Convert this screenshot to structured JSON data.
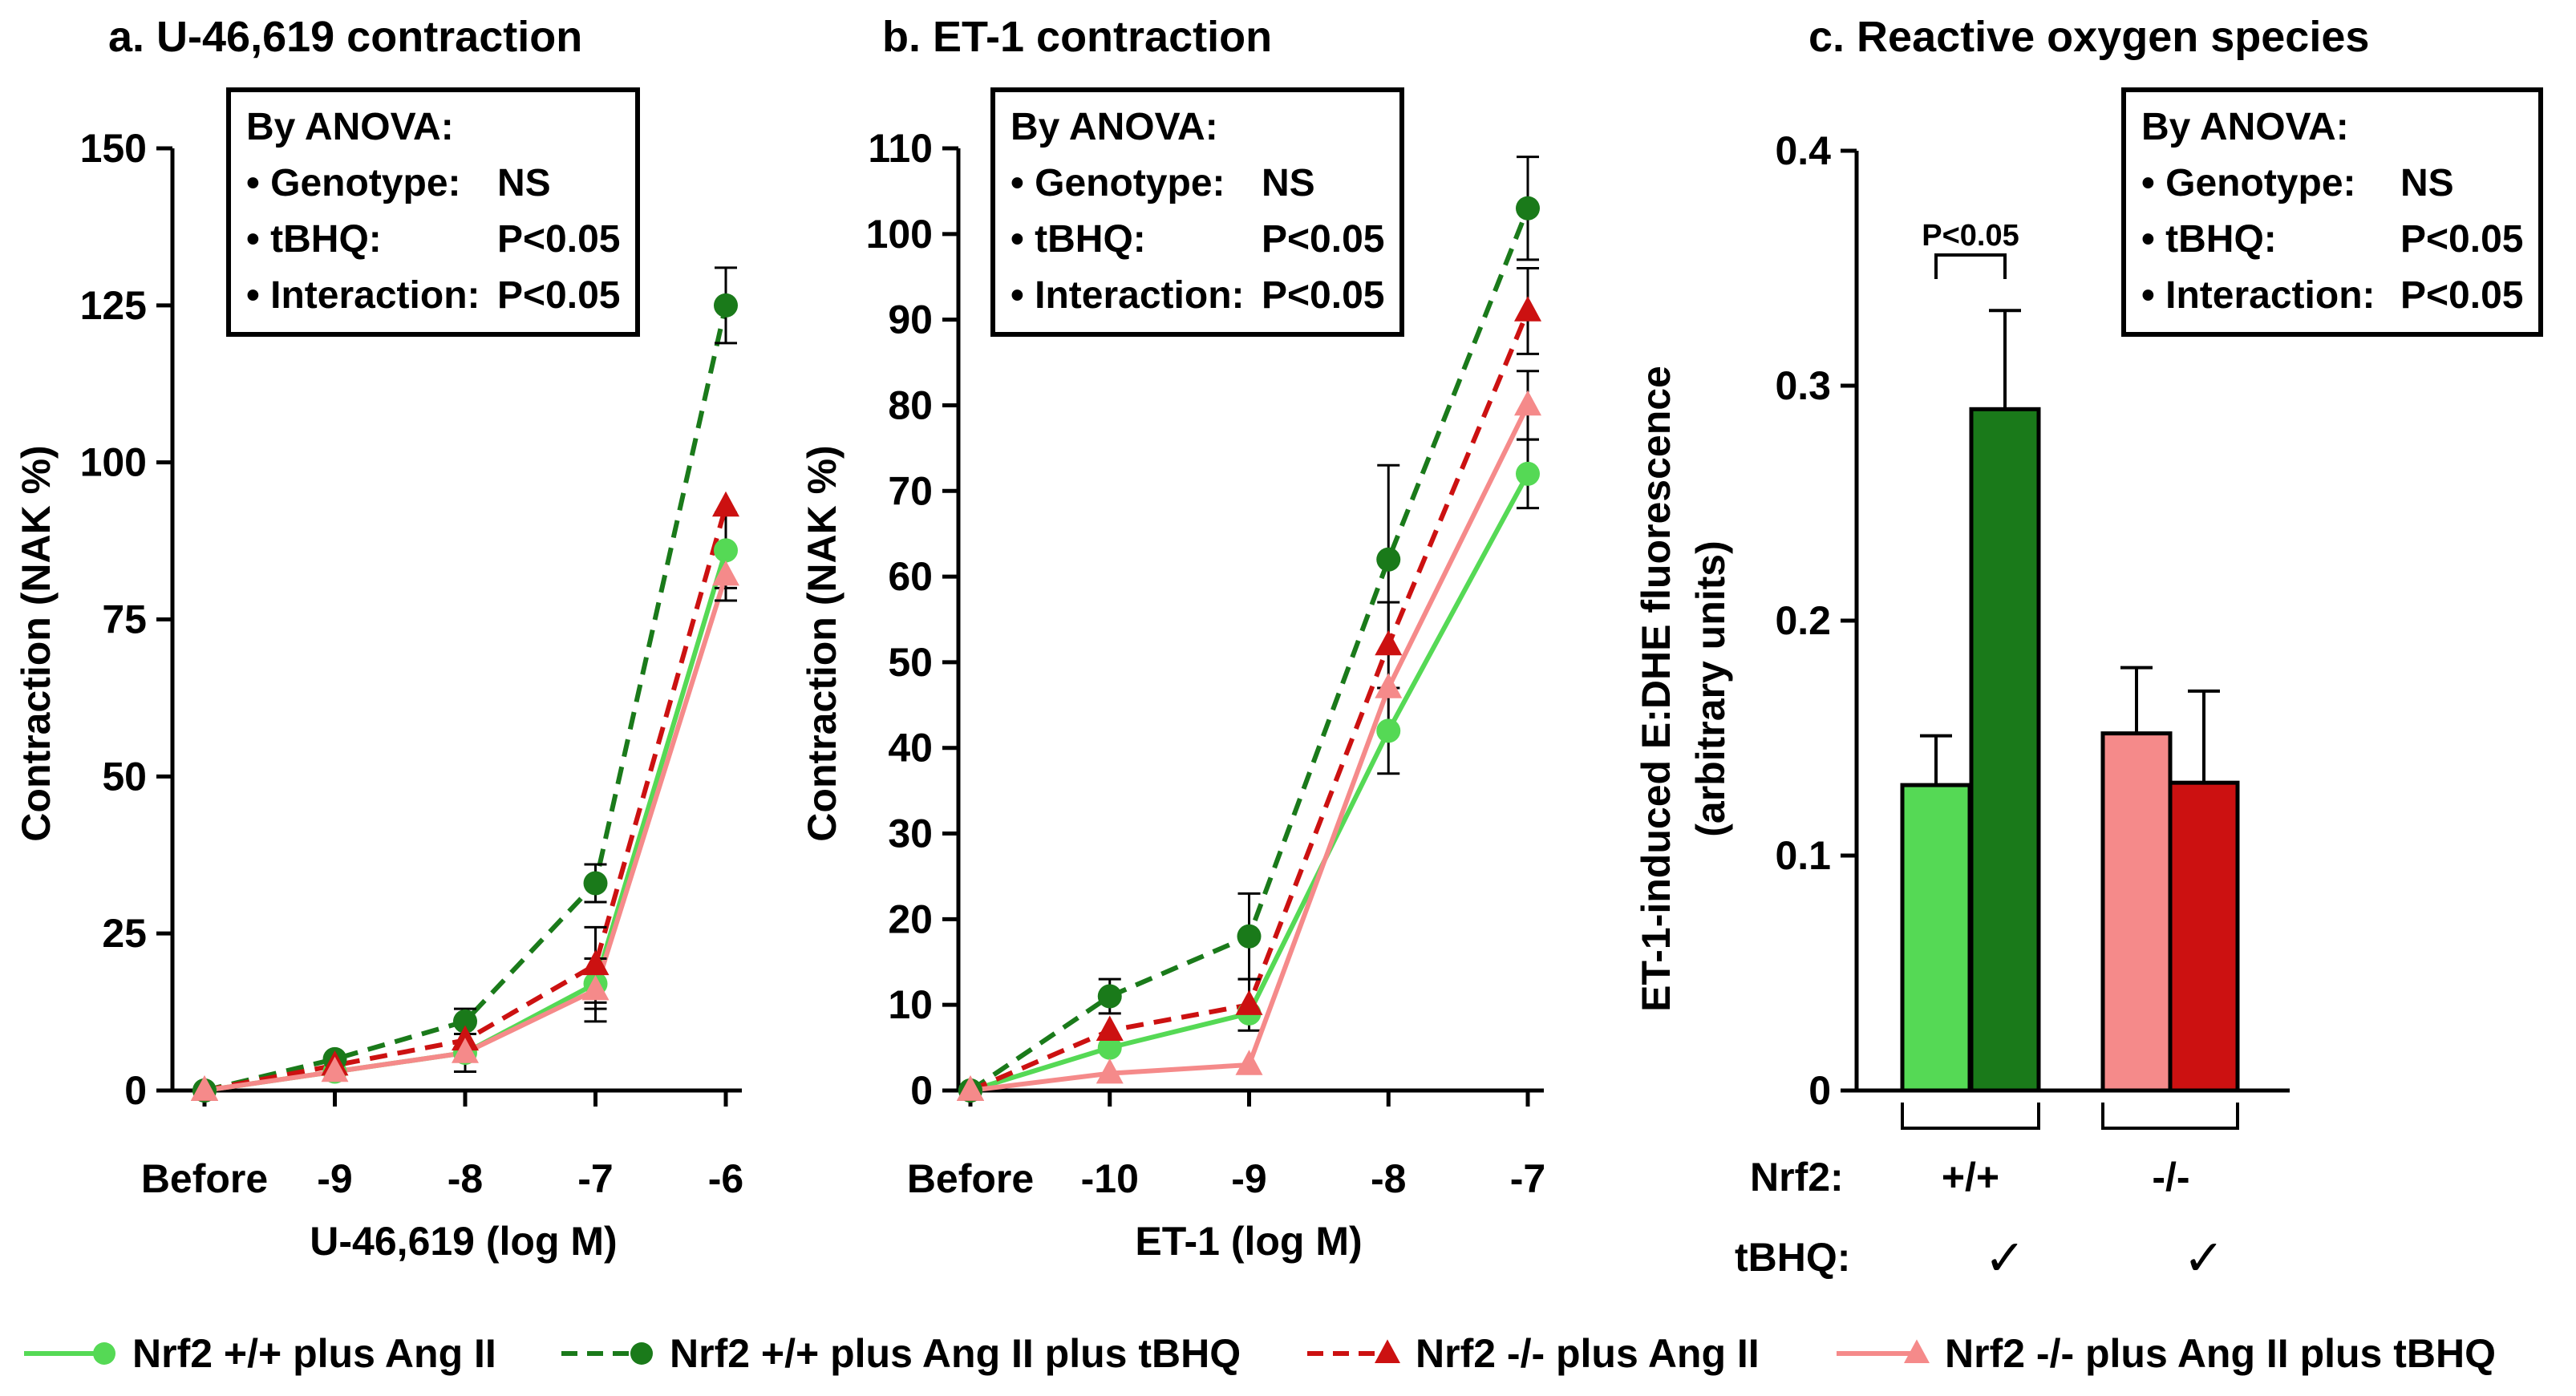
{
  "series_styles": [
    {
      "key": "wt",
      "color": "#55d955",
      "marker": "circle",
      "dashed": false
    },
    {
      "key": "wt_tbhq",
      "color": "#1a7a1a",
      "marker": "circle",
      "dashed": true
    },
    {
      "key": "ko",
      "color": "#cc1111",
      "marker": "triangle",
      "dashed": true
    },
    {
      "key": "ko_tbhq",
      "color": "#f58a8a",
      "marker": "triangle",
      "dashed": false
    }
  ],
  "legend": [
    "Nrf2 +/+ plus Ang II",
    "Nrf2 +/+ plus Ang II plus tBHQ",
    "Nrf2 -/- plus Ang II",
    "Nrf2 -/- plus Ang II plus tBHQ"
  ],
  "anova": {
    "header": "By ANOVA:",
    "rows": [
      {
        "label": "• Genotype:",
        "value": "NS"
      },
      {
        "label": "• tBHQ:",
        "value": "P<0.05"
      },
      {
        "label": "• Interaction:",
        "value": "P<0.05"
      }
    ]
  },
  "bar_labels": {
    "nrf2_label": "Nrf2:",
    "tbhq_label": "tBHQ:",
    "groups": [
      "+/+",
      "-/-"
    ],
    "check": "✓",
    "significance": "P<0.05"
  },
  "chart_data": [
    {
      "type": "line",
      "title": "a. U-46,619 contraction",
      "xlabel": "U-46,619 (log M)",
      "ylabel": "Contraction (NAK %)",
      "categories": [
        "Before",
        "-9",
        "-8",
        "-7",
        "-6"
      ],
      "ylim": [
        0,
        150
      ],
      "yticks": [
        "0",
        "25",
        "50",
        "75",
        "100",
        "125",
        "150"
      ],
      "series": [
        {
          "name": "Nrf2 +/+ plus Ang II",
          "values": [
            0,
            3,
            6,
            17,
            86
          ],
          "errors": [
            0,
            0,
            0,
            4,
            6
          ]
        },
        {
          "name": "Nrf2 +/+ plus Ang II plus tBHQ",
          "values": [
            0,
            5,
            11,
            33,
            125
          ],
          "errors": [
            0,
            0,
            2,
            3,
            6
          ]
        },
        {
          "name": "Nrf2 -/- plus Ang II",
          "values": [
            0,
            4,
            8,
            20,
            93
          ],
          "errors": [
            0,
            0,
            0,
            6,
            0
          ]
        },
        {
          "name": "Nrf2 -/- plus Ang II plus tBHQ",
          "values": [
            0,
            3,
            6,
            16,
            82
          ],
          "errors": [
            0,
            0,
            3,
            5,
            4
          ]
        }
      ]
    },
    {
      "type": "line",
      "title": "b. ET-1 contraction",
      "xlabel": "ET-1 (log M)",
      "ylabel": "Contraction (NAK %)",
      "categories": [
        "Before",
        "-10",
        "-9",
        "-8",
        "-7"
      ],
      "ylim": [
        0,
        110
      ],
      "yticks": [
        "0",
        "10",
        "20",
        "30",
        "40",
        "50",
        "60",
        "70",
        "80",
        "90",
        "100",
        "110"
      ],
      "series": [
        {
          "name": "Nrf2 +/+ plus Ang II",
          "values": [
            0,
            5,
            9,
            42,
            72
          ],
          "errors": [
            0,
            0,
            0,
            5,
            4
          ]
        },
        {
          "name": "Nrf2 +/+ plus Ang II plus tBHQ",
          "values": [
            0,
            11,
            18,
            62,
            103
          ],
          "errors": [
            0,
            2,
            5,
            11,
            6
          ]
        },
        {
          "name": "Nrf2 -/- plus Ang II",
          "values": [
            0,
            7,
            10,
            52,
            91
          ],
          "errors": [
            0,
            0,
            3,
            5,
            5
          ]
        },
        {
          "name": "Nrf2 -/- plus Ang II plus tBHQ",
          "values": [
            0,
            2,
            3,
            47,
            80
          ],
          "errors": [
            0,
            0,
            0,
            0,
            4
          ]
        }
      ]
    },
    {
      "type": "bar",
      "title": "c. Reactive oxygen species",
      "ylabel_lines": [
        "ET-1-induced E:DHE fluorescence",
        "(arbitrary units)"
      ],
      "ylim": [
        0,
        0.4
      ],
      "yticks": [
        "0",
        "0.1",
        "0.2",
        "0.3",
        "0.4"
      ],
      "bars": [
        {
          "name": "Nrf2 +/+ plus Ang II",
          "value": 0.13,
          "error": 0.021
        },
        {
          "name": "Nrf2 +/+ plus Ang II plus tBHQ",
          "value": 0.29,
          "error": 0.042
        },
        {
          "name": "Nrf2 -/- plus Ang II plus tBHQ",
          "value": 0.152,
          "error": 0.028
        },
        {
          "name": "Nrf2 -/- plus Ang II",
          "value": 0.131,
          "error": 0.039
        }
      ]
    }
  ]
}
